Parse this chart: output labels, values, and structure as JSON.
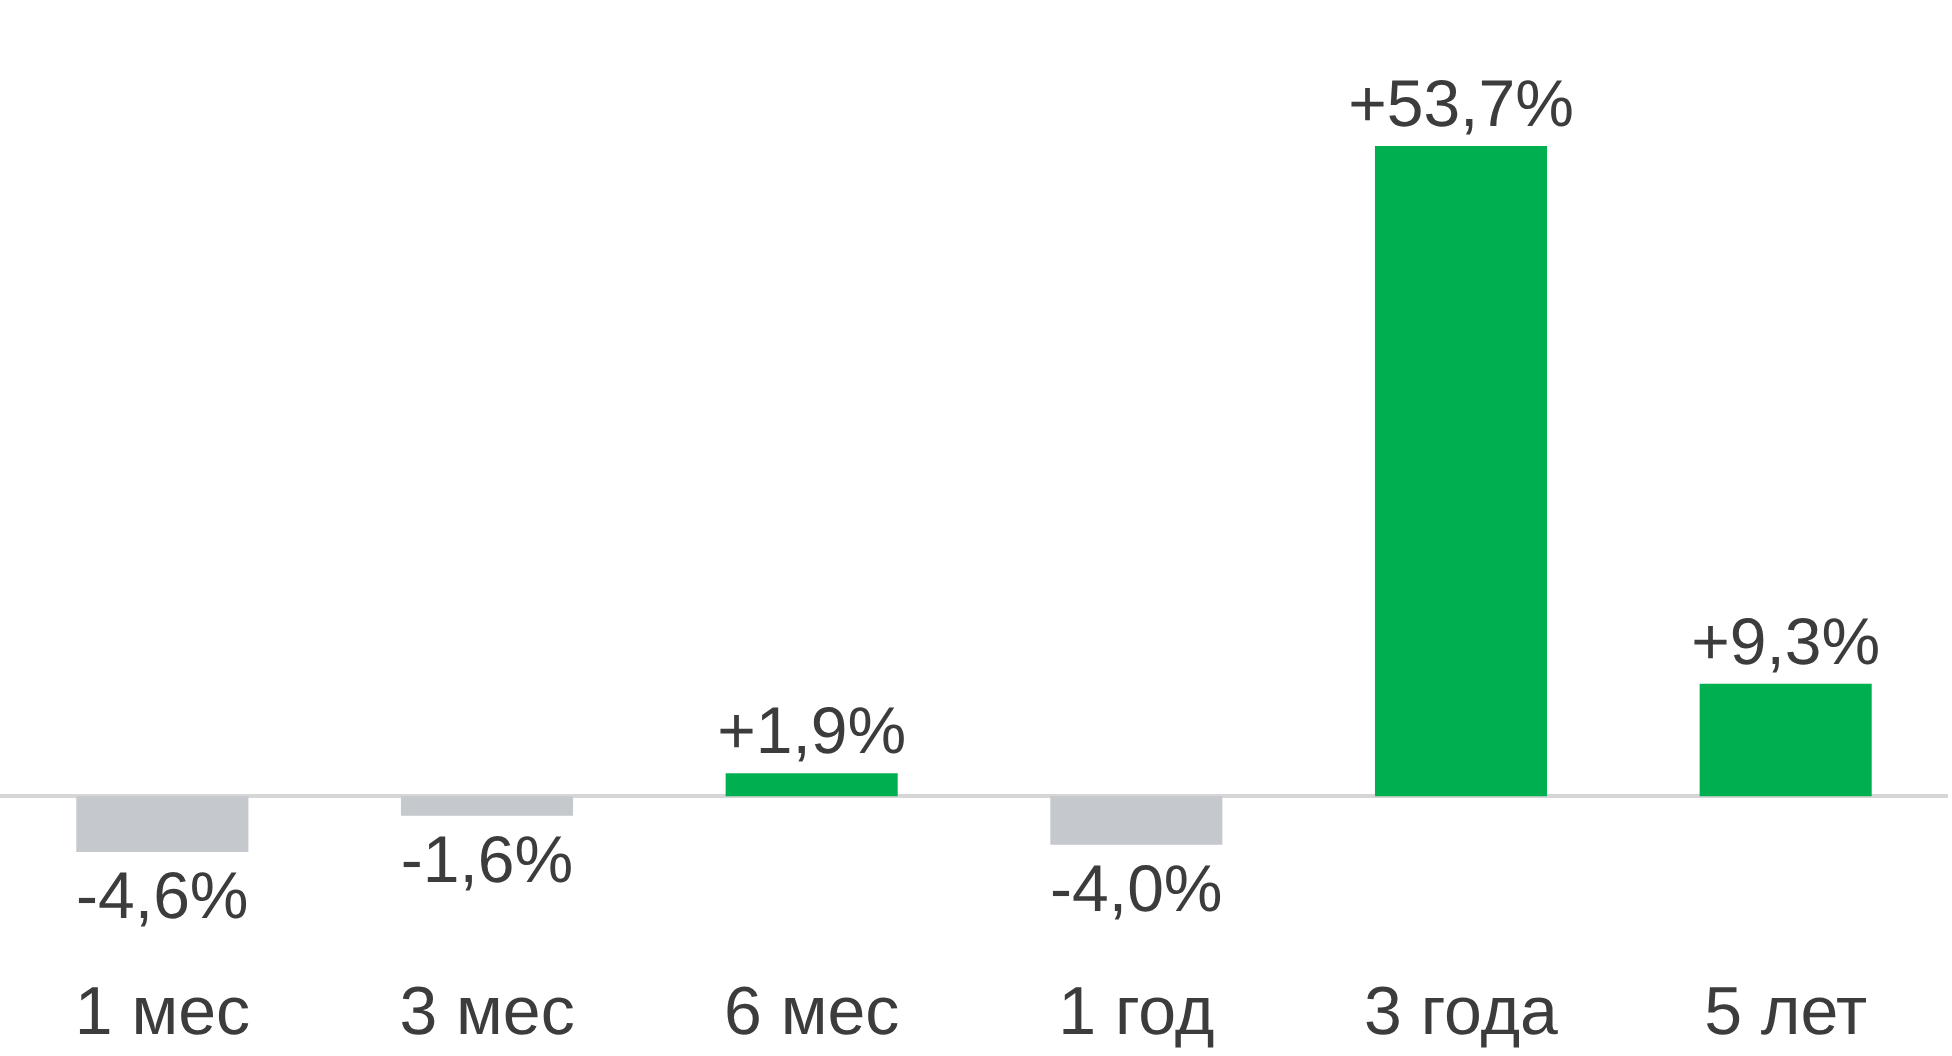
{
  "chart_data": {
    "type": "bar",
    "categories": [
      "1 мес",
      "3 мес",
      "6 мес",
      "1 год",
      "3 года",
      "5 лет"
    ],
    "values": [
      -4.6,
      -1.6,
      1.9,
      -4.0,
      53.7,
      9.3
    ],
    "colors": [
      "#c5c9cd",
      "#c5c9cd",
      "#00b050",
      "#c5c9cd",
      "#00b050",
      "#00b050"
    ],
    "value_labels": [
      "-4,6%",
      "-1,6%",
      "+1,9%",
      "-4,0%",
      "+53,7%",
      "+9,3%"
    ]
  }
}
